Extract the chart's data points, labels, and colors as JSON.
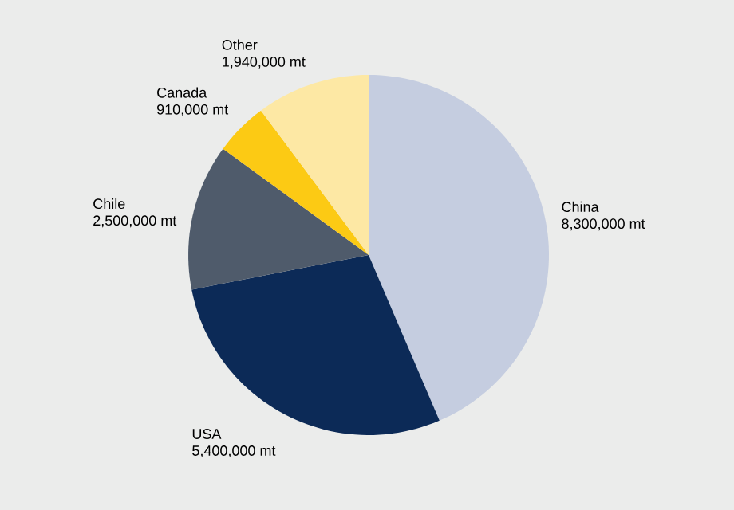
{
  "chart_data": {
    "type": "pie",
    "categories": [
      "China",
      "USA",
      "Chile",
      "Canada",
      "Other"
    ],
    "values": [
      8300000,
      5400000,
      2500000,
      910000,
      1940000
    ],
    "value_labels": [
      "8,300,000 mt",
      "5,400,000 mt",
      "2,500,000 mt",
      "910,000 mt",
      "1,940,000 mt"
    ],
    "colors": [
      "#c5cde0",
      "#0c2a57",
      "#4f5b6b",
      "#fcca14",
      "#fde8a4"
    ]
  }
}
